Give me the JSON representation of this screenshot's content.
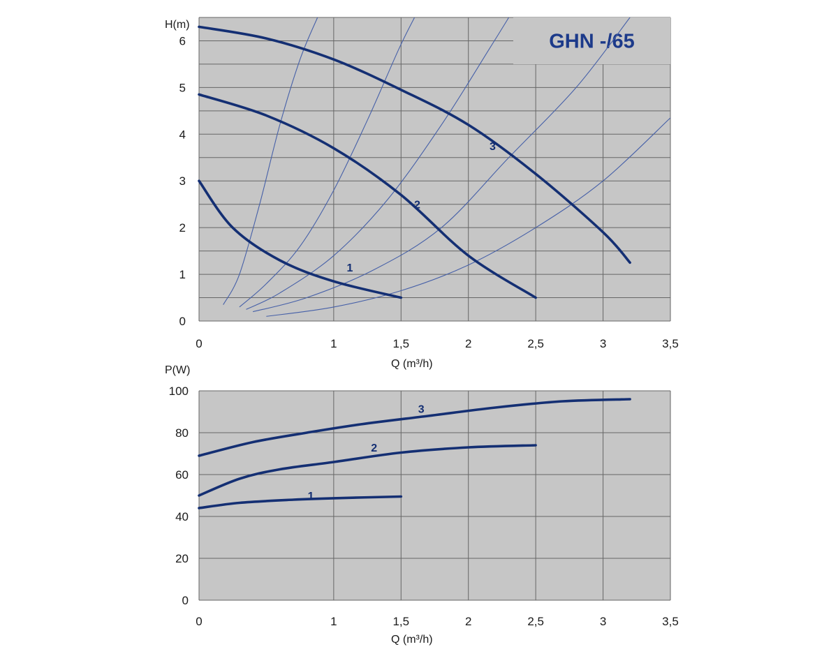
{
  "colors": {
    "plot_bg": "#c6c6c6",
    "grid": "#666666",
    "curve": "#142f73",
    "system": "#4660a8",
    "title": "#1c3a8a"
  },
  "chart_data": [
    {
      "type": "line",
      "title": "GHN -/65",
      "ylabel": "H(m)",
      "xlabel": "Q (m³/h)",
      "xlim": [
        0,
        3.5
      ],
      "ylim": [
        0,
        6.5
      ],
      "grid": true,
      "x_ticks": [
        0,
        1,
        1.5,
        2,
        2.5,
        3,
        3.5
      ],
      "x_tick_labels": [
        "0",
        "1",
        "1,5",
        "2",
        "2,5",
        "3",
        "3,5"
      ],
      "y_ticks": [
        0,
        1,
        2,
        3,
        4,
        5,
        6
      ],
      "y_tick_labels": [
        "0",
        "1",
        "2",
        "3",
        "4",
        "5",
        "6"
      ],
      "series": [
        {
          "label": "1",
          "label_at": [
            1.12,
            1.15
          ],
          "points": [
            [
              0,
              3.0
            ],
            [
              0.25,
              2.0
            ],
            [
              0.6,
              1.3
            ],
            [
              1.0,
              0.85
            ],
            [
              1.5,
              0.5
            ]
          ]
        },
        {
          "label": "2",
          "label_at": [
            1.62,
            2.5
          ],
          "points": [
            [
              0,
              4.85
            ],
            [
              0.5,
              4.4
            ],
            [
              1.0,
              3.7
            ],
            [
              1.5,
              2.7
            ],
            [
              2.0,
              1.4
            ],
            [
              2.5,
              0.5
            ]
          ]
        },
        {
          "label": "3",
          "label_at": [
            2.18,
            3.75
          ],
          "points": [
            [
              0,
              6.3
            ],
            [
              0.5,
              6.05
            ],
            [
              1.0,
              5.6
            ],
            [
              1.5,
              4.95
            ],
            [
              2.0,
              4.2
            ],
            [
              2.5,
              3.15
            ],
            [
              3.0,
              1.9
            ],
            [
              3.2,
              1.25
            ]
          ]
        }
      ],
      "system_curves": [
        [
          [
            0.18,
            0.35
          ],
          [
            0.3,
            1.0
          ],
          [
            0.45,
            2.5
          ],
          [
            0.6,
            4.2
          ],
          [
            0.75,
            5.6
          ],
          [
            0.88,
            6.5
          ]
        ],
        [
          [
            0.3,
            0.3
          ],
          [
            0.5,
            0.8
          ],
          [
            0.75,
            1.6
          ],
          [
            1.0,
            2.8
          ],
          [
            1.25,
            4.3
          ],
          [
            1.48,
            5.8
          ],
          [
            1.6,
            6.5
          ]
        ],
        [
          [
            0.35,
            0.25
          ],
          [
            0.6,
            0.6
          ],
          [
            1.0,
            1.4
          ],
          [
            1.4,
            2.6
          ],
          [
            1.8,
            4.2
          ],
          [
            2.15,
            5.8
          ],
          [
            2.3,
            6.5
          ]
        ],
        [
          [
            0.4,
            0.2
          ],
          [
            0.8,
            0.5
          ],
          [
            1.3,
            1.1
          ],
          [
            1.8,
            2.0
          ],
          [
            2.3,
            3.5
          ],
          [
            2.8,
            5.0
          ],
          [
            3.2,
            6.5
          ]
        ],
        [
          [
            0.5,
            0.1
          ],
          [
            1.0,
            0.3
          ],
          [
            1.5,
            0.65
          ],
          [
            2.0,
            1.2
          ],
          [
            2.5,
            2.0
          ],
          [
            3.0,
            3.0
          ],
          [
            3.5,
            4.35
          ]
        ]
      ]
    },
    {
      "type": "line",
      "title": "",
      "ylabel": "P(W)",
      "xlabel": "Q (m³/h)",
      "xlim": [
        0,
        3.5
      ],
      "ylim": [
        0,
        100
      ],
      "grid": true,
      "x_ticks": [
        0,
        1,
        1.5,
        2,
        2.5,
        3,
        3.5
      ],
      "x_tick_labels": [
        "0",
        "1",
        "1,5",
        "2",
        "2,5",
        "3",
        "3,5"
      ],
      "y_ticks": [
        0,
        20,
        40,
        60,
        80,
        100
      ],
      "y_tick_labels": [
        "0",
        "20",
        "40",
        "60",
        "80",
        "100"
      ],
      "series": [
        {
          "label": "1",
          "label_at": [
            0.83,
            50
          ],
          "points": [
            [
              0,
              44
            ],
            [
              0.3,
              46.5
            ],
            [
              0.7,
              48
            ],
            [
              1.0,
              48.7
            ],
            [
              1.5,
              49.5
            ]
          ]
        },
        {
          "label": "2",
          "label_at": [
            1.3,
            73
          ],
          "points": [
            [
              0,
              50
            ],
            [
              0.3,
              58
            ],
            [
              0.6,
              62.5
            ],
            [
              1.0,
              66
            ],
            [
              1.5,
              70.5
            ],
            [
              2.0,
              73
            ],
            [
              2.5,
              74
            ]
          ]
        },
        {
          "label": "3",
          "label_at": [
            1.65,
            91.5
          ],
          "points": [
            [
              0,
              69
            ],
            [
              0.4,
              75.5
            ],
            [
              0.8,
              80
            ],
            [
              1.2,
              84
            ],
            [
              1.7,
              88
            ],
            [
              2.2,
              92
            ],
            [
              2.7,
              95
            ],
            [
              3.2,
              96
            ]
          ]
        }
      ]
    }
  ]
}
